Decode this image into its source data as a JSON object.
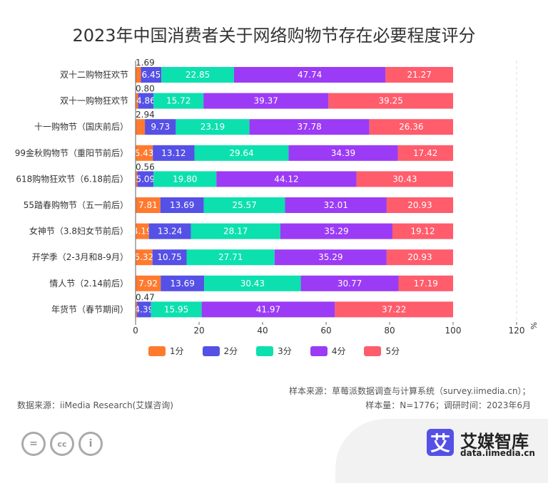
{
  "chart_data": {
    "type": "bar",
    "orientation": "horizontal",
    "stacked": true,
    "title": "2023年中国消费者关于网络购物节存在必要程度评分",
    "categories": [
      "双十二购物狂欢节",
      "双十一购物狂欢节",
      "十一购物节（国庆前后）",
      "99金秋购物节（重阳节前后）",
      "618购物狂欢节（6.18前后）",
      "55踏春购物节（五一前后）",
      "女神节（3.8妇女节前后）",
      "开学季（2-3月和8-9月）",
      "情人节（2.14前后）",
      "年货节（春节期间）"
    ],
    "series": [
      {
        "name": "1分",
        "color": "#FF7A2F",
        "values": [
          1.69,
          0.8,
          2.94,
          5.43,
          0.56,
          7.81,
          4.19,
          5.32,
          7.92,
          0.47
        ]
      },
      {
        "name": "2分",
        "color": "#5550E6",
        "values": [
          6.45,
          4.86,
          9.73,
          13.12,
          5.09,
          13.69,
          13.24,
          10.75,
          13.69,
          4.39
        ]
      },
      {
        "name": "3分",
        "color": "#0CE0AE",
        "values": [
          22.85,
          15.72,
          23.19,
          29.64,
          19.8,
          25.57,
          28.17,
          27.71,
          30.43,
          15.95
        ]
      },
      {
        "name": "4分",
        "color": "#9B3BF5",
        "values": [
          47.74,
          39.37,
          37.78,
          34.39,
          44.12,
          32.01,
          35.29,
          35.29,
          30.77,
          41.97
        ]
      },
      {
        "name": "5分",
        "color": "#FF5C6C",
        "values": [
          21.27,
          39.25,
          26.36,
          17.42,
          30.43,
          20.93,
          19.12,
          20.93,
          17.19,
          37.22
        ]
      }
    ],
    "xlim": [
      0,
      120
    ],
    "xticks": [
      "0",
      "20",
      "40",
      "60",
      "80",
      "100",
      "120"
    ],
    "xunit": "%",
    "legend": "bottom-center"
  },
  "footer": {
    "data_source": "数据来源：iiMedia Research(艾媒咨询)",
    "sample_source": "样本来源：草莓派数据调查与计算系统（survey.iimedia.cn）；",
    "sample_info": "样本量：N=1776；调研时间：2023年6月",
    "logo_name": "艾媒智库",
    "logo_url": "data.iimedia.cn",
    "logo_mark": "艾"
  }
}
